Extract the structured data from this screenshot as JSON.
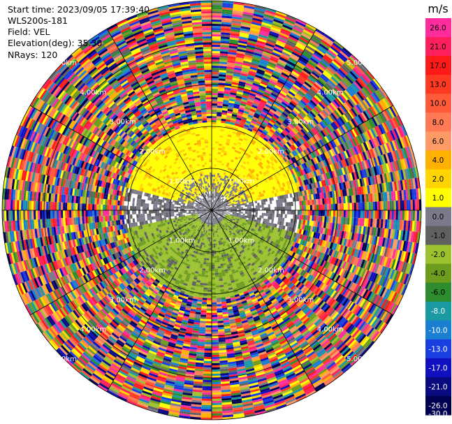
{
  "header": {
    "start_time": "Start time: 2023/09/05 17:39:40",
    "instrument": "WLS200s-181",
    "field": "Field: VEL",
    "elevation": "Elevation(deg): 35.30",
    "nrays": "NRays: 120"
  },
  "colorbar": {
    "unit": "m/s",
    "ticks": [
      "26.0",
      "21.0",
      "17.0",
      "13.0",
      "10.0",
      "8.0",
      "6.0",
      "4.0",
      "2.0",
      "1.0",
      "0.0",
      "-1.0",
      "-2.0",
      "-4.0",
      "-6.0",
      "-8.0",
      "-10.0",
      "-13.0",
      "-17.0",
      "-21.0",
      "-26.0",
      "-30.0"
    ],
    "colors": [
      "#ff2d9b",
      "#ff1f5c",
      "#ff1a1a",
      "#ff3a22",
      "#ff5a3a",
      "#ff7a55",
      "#ff9a66",
      "#ffb000",
      "#ffd400",
      "#ffff00",
      "#7a7a8a",
      "#606060",
      "#9bc22e",
      "#6e9c1e",
      "#2d8c2d",
      "#1a9aa0",
      "#1a7fd0",
      "#1a3fe0",
      "#1010c0",
      "#0a0a80",
      "#000050"
    ]
  },
  "chart_data": {
    "type": "heatmap",
    "projection": "polar-ppi",
    "range_rings": [
      {
        "label": "1.00km",
        "range_km": 1.0
      },
      {
        "label": "2.00km",
        "range_km": 2.0
      },
      {
        "label": "3.00km",
        "range_km": 3.0
      },
      {
        "label": "4.00km",
        "range_km": 4.0
      },
      {
        "label": "5.00km",
        "range_km": 5.0
      }
    ],
    "max_range_km": 5.0,
    "n_rays": 120,
    "spoke_interval_deg": 30,
    "field": "VEL",
    "colorbar_unit": "m/s"
  }
}
